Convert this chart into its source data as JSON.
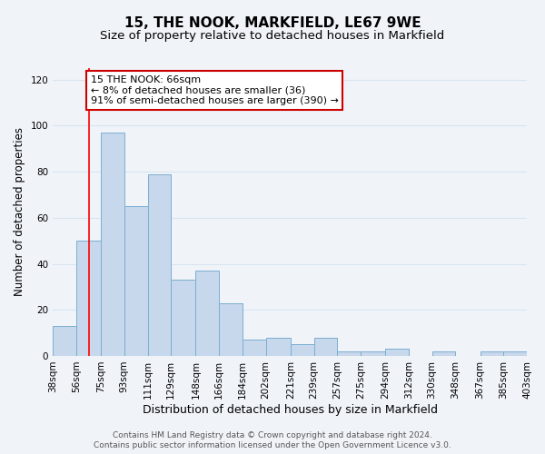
{
  "title": "15, THE NOOK, MARKFIELD, LE67 9WE",
  "subtitle": "Size of property relative to detached houses in Markfield",
  "xlabel": "Distribution of detached houses by size in Markfield",
  "ylabel": "Number of detached properties",
  "bin_edges": [
    38,
    56,
    75,
    93,
    111,
    129,
    148,
    166,
    184,
    202,
    221,
    239,
    257,
    275,
    294,
    312,
    330,
    348,
    367,
    385,
    403
  ],
  "bar_heights": [
    13,
    50,
    97,
    65,
    79,
    33,
    37,
    23,
    7,
    8,
    5,
    8,
    2,
    2,
    3,
    0,
    2,
    0,
    2,
    2
  ],
  "bar_color": "#c8d8ec",
  "bar_edgecolor": "#7aaed0",
  "tick_labels": [
    "38sqm",
    "56sqm",
    "75sqm",
    "93sqm",
    "111sqm",
    "129sqm",
    "148sqm",
    "166sqm",
    "184sqm",
    "202sqm",
    "221sqm",
    "239sqm",
    "257sqm",
    "275sqm",
    "294sqm",
    "312sqm",
    "330sqm",
    "348sqm",
    "367sqm",
    "385sqm",
    "403sqm"
  ],
  "ylim": [
    0,
    125
  ],
  "yticks": [
    0,
    20,
    40,
    60,
    80,
    100,
    120
  ],
  "red_line_x": 66,
  "annotation_text": "15 THE NOOK: 66sqm\n← 8% of detached houses are smaller (36)\n91% of semi-detached houses are larger (390) →",
  "annotation_box_color": "#ffffff",
  "annotation_box_edgecolor": "#cc0000",
  "footer_line1": "Contains HM Land Registry data © Crown copyright and database right 2024.",
  "footer_line2": "Contains public sector information licensed under the Open Government Licence v3.0.",
  "background_color": "#f0f4f9",
  "grid_color": "#d8e4f0",
  "title_fontsize": 11,
  "subtitle_fontsize": 9.5,
  "xlabel_fontsize": 9,
  "ylabel_fontsize": 8.5,
  "tick_fontsize": 7.5,
  "annotation_fontsize": 8,
  "footer_fontsize": 6.5
}
